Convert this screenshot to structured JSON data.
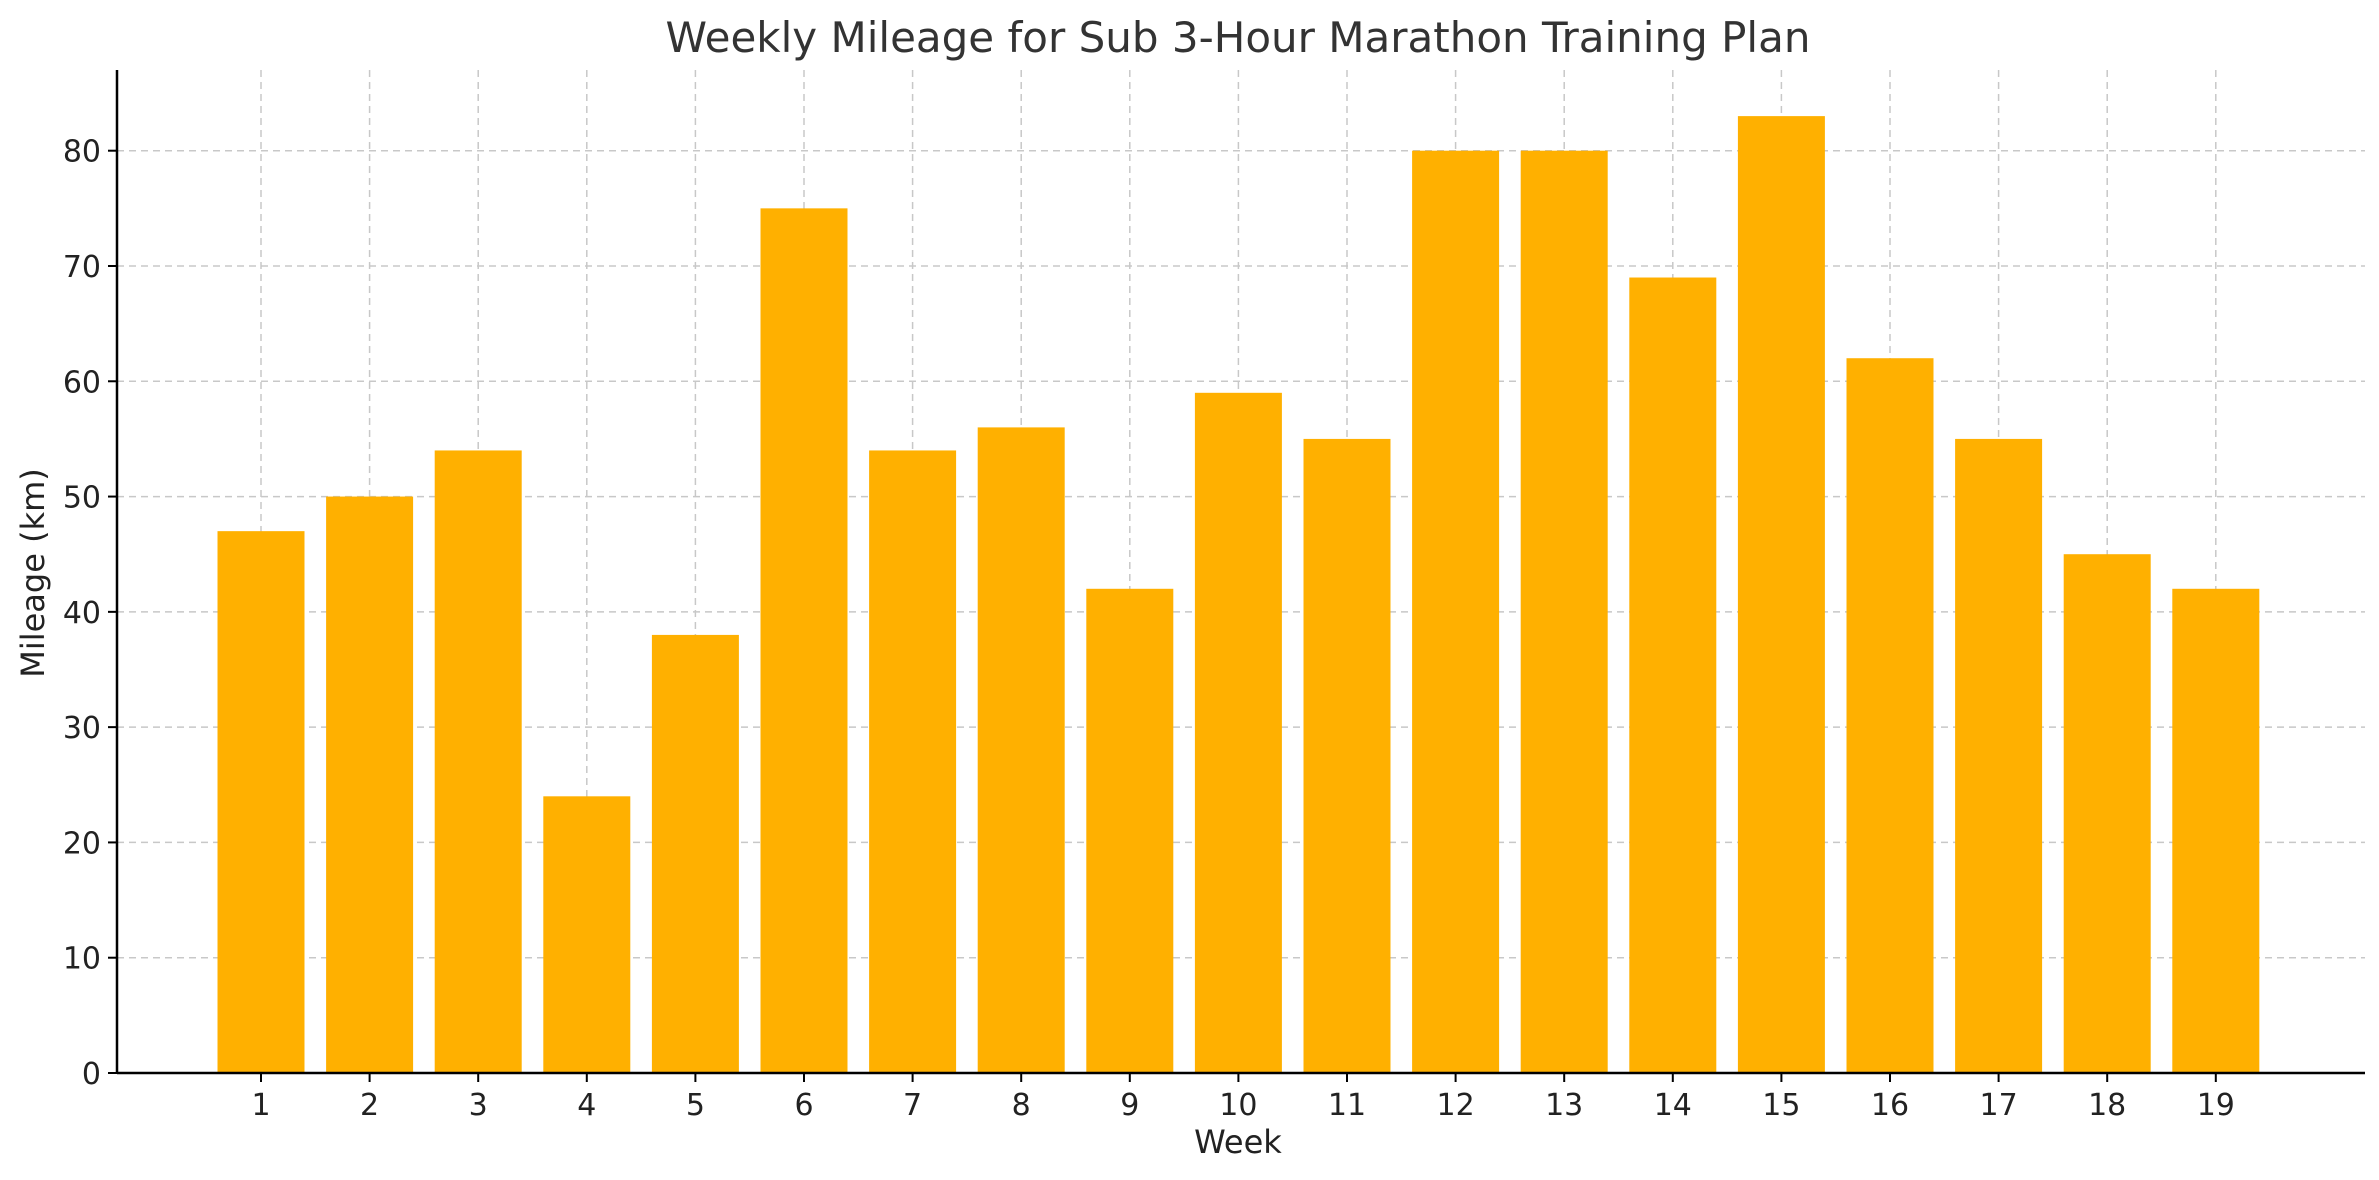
{
  "chart_data": {
    "type": "bar",
    "title": "Weekly Mileage for Sub 3-Hour Marathon Training Plan",
    "xlabel": "Week",
    "ylabel": "Mileage (km)",
    "categories": [
      "1",
      "2",
      "3",
      "4",
      "5",
      "6",
      "7",
      "8",
      "9",
      "10",
      "11",
      "12",
      "13",
      "14",
      "15",
      "16",
      "17",
      "18",
      "19"
    ],
    "values": [
      47,
      50,
      54,
      24,
      38,
      75,
      54,
      56,
      42,
      59,
      55,
      80,
      80,
      69,
      83,
      62,
      55,
      45,
      42
    ],
    "ylim": [
      0,
      87
    ],
    "yticks": [
      0,
      10,
      20,
      30,
      40,
      50,
      60,
      70,
      80
    ],
    "grid": true,
    "bar_color": "#FFB000"
  }
}
